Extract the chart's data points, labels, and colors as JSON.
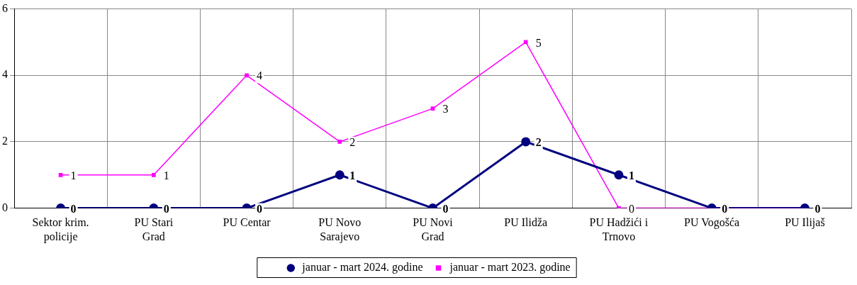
{
  "chart_data": {
    "type": "line",
    "categories": [
      "Sektor krim. policije",
      "PU Stari Grad",
      "PU Centar",
      "PU Novo Sarajevo",
      "PU Novi Grad",
      "PU Ilidža",
      "PU Hadžići i Trnovo",
      "PU Vogošća",
      "PU Ilijaš"
    ],
    "series": [
      {
        "name": "januar - mart 2024. godine",
        "color": "#000080",
        "marker": "circle",
        "values": [
          0,
          0,
          0,
          1,
          0,
          2,
          1,
          0,
          0
        ],
        "value_labels": [
          "0",
          "0",
          "0",
          "1",
          "0",
          "2",
          "1",
          "0",
          "0"
        ]
      },
      {
        "name": "januar - mart 2023. godine",
        "color": "#ff00ff",
        "marker": "square",
        "values": [
          1,
          1,
          4,
          2,
          3,
          5,
          0,
          0,
          0
        ],
        "value_labels": [
          "1",
          "1",
          "4",
          "2",
          "3",
          "5",
          "0",
          null,
          null
        ]
      }
    ],
    "ylim": [
      0,
      6
    ],
    "yticks": [
      0,
      2,
      4,
      6
    ],
    "grid": true,
    "legend": "bottom"
  }
}
